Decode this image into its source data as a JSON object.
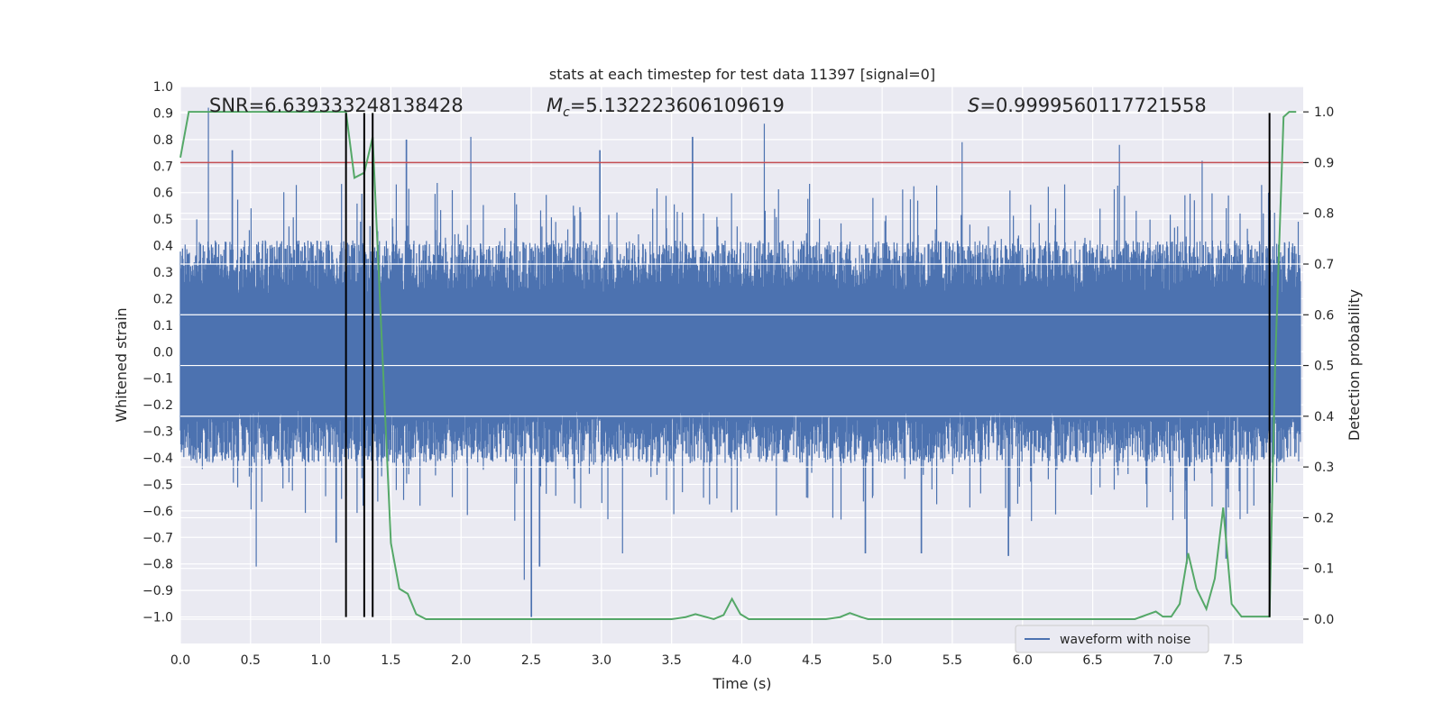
{
  "chart_data": {
    "type": "line",
    "title": "stats at each timestep for test data 11397 [signal=0]",
    "xlabel": "Time (s)",
    "ylabel": "Whitened strain",
    "y2label": "Detection probability",
    "xlim": [
      0.0,
      8.0
    ],
    "ylim": [
      -1.1,
      1.0
    ],
    "y2lim": [
      -0.048,
      1.05
    ],
    "xticks": [
      0.0,
      0.5,
      1.0,
      1.5,
      2.0,
      2.5,
      3.0,
      3.5,
      4.0,
      4.5,
      5.0,
      5.5,
      6.0,
      6.5,
      7.0,
      7.5
    ],
    "yticks": [
      1.0,
      0.9,
      0.8,
      0.7,
      0.6,
      0.5,
      0.4,
      0.3,
      0.2,
      0.1,
      0.0,
      -0.1,
      -0.2,
      -0.3,
      -0.4,
      -0.5,
      -0.6,
      -0.7,
      -0.8,
      -0.9,
      -1.0
    ],
    "y2ticks": [
      1.0,
      0.9,
      0.8,
      0.7,
      0.6,
      0.5,
      0.4,
      0.3,
      0.2,
      0.1,
      0.0
    ],
    "grid": true,
    "legend": {
      "location": "lower-right",
      "entries": [
        "waveform with noise"
      ]
    },
    "annotations": {
      "snr": "SNR=6.639333248138428",
      "mc_symbol": "M",
      "mc_sub": "c",
      "mc_value": "=5.132223606109619",
      "s_symbol": "S",
      "s_value": "=0.9999560117721558"
    },
    "threshold": 0.9,
    "vertical_lines_x": [
      1.18,
      1.31,
      1.37,
      7.76
    ],
    "vertical_lines_ymax": 0.9,
    "waveform": {
      "name": "waveform with noise",
      "color": "#4c72b0",
      "note": "dense noise series; envelope peaks sampled",
      "upper_peaks": [
        [
          0.2,
          0.92
        ],
        [
          0.37,
          0.76
        ],
        [
          1.61,
          0.8
        ],
        [
          2.07,
          0.81
        ],
        [
          2.99,
          0.76
        ],
        [
          3.65,
          0.81
        ],
        [
          4.16,
          0.86
        ],
        [
          5.57,
          0.79
        ],
        [
          6.69,
          0.78
        ],
        [
          7.28,
          0.72
        ]
      ],
      "lower_peaks": [
        [
          0.54,
          -0.81
        ],
        [
          1.11,
          -0.72
        ],
        [
          2.45,
          -0.86
        ],
        [
          2.5,
          -1.0
        ],
        [
          2.56,
          -0.81
        ],
        [
          3.15,
          -0.76
        ],
        [
          4.88,
          -0.76
        ],
        [
          5.28,
          -0.76
        ],
        [
          5.9,
          -0.77
        ],
        [
          7.17,
          -0.8
        ],
        [
          7.45,
          -0.78
        ]
      ]
    },
    "probability": {
      "name": "detection probability",
      "color": "#55a868",
      "x": [
        0.0,
        0.06,
        0.2,
        0.5,
        0.8,
        1.0,
        1.18,
        1.24,
        1.31,
        1.37,
        1.5,
        1.56,
        1.62,
        1.68,
        1.75,
        2.0,
        2.5,
        3.0,
        3.5,
        3.6,
        3.67,
        3.8,
        3.87,
        3.93,
        3.99,
        4.05,
        4.3,
        4.6,
        4.7,
        4.77,
        4.85,
        4.9,
        5.1,
        5.5,
        6.0,
        6.5,
        6.8,
        6.9,
        6.95,
        7.0,
        7.06,
        7.12,
        7.18,
        7.24,
        7.31,
        7.37,
        7.43,
        7.49,
        7.56,
        7.7,
        7.76,
        7.8,
        7.86,
        7.9,
        7.95
      ],
      "y": [
        0.91,
        1.0,
        1.0,
        1.0,
        1.0,
        1.0,
        1.0,
        0.87,
        0.88,
        0.95,
        0.15,
        0.06,
        0.05,
        0.01,
        0.0,
        0.0,
        0.0,
        0.0,
        0.0,
        0.004,
        0.01,
        0.0,
        0.008,
        0.04,
        0.01,
        0.0,
        0.0,
        0.0,
        0.004,
        0.012,
        0.004,
        0.0,
        0.0,
        0.0,
        0.0,
        0.0,
        0.0,
        0.01,
        0.015,
        0.005,
        0.005,
        0.03,
        0.13,
        0.06,
        0.02,
        0.08,
        0.22,
        0.03,
        0.005,
        0.005,
        0.005,
        0.5,
        0.99,
        1.0,
        1.0
      ]
    }
  },
  "colors": {
    "plot_bg": "#eaeaf2",
    "grid": "#ffffff",
    "threshold": "#c44e52",
    "vlines": "#000000",
    "text": "#262626"
  }
}
